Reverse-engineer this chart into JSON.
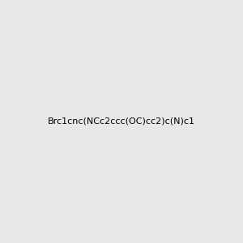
{
  "smiles": "Brc1cnc(NCc2ccc(OC)cc2)c(N)c1",
  "title": "",
  "bg_color": "#e8e8e8",
  "figsize": [
    3.0,
    3.0
  ],
  "dpi": 100
}
